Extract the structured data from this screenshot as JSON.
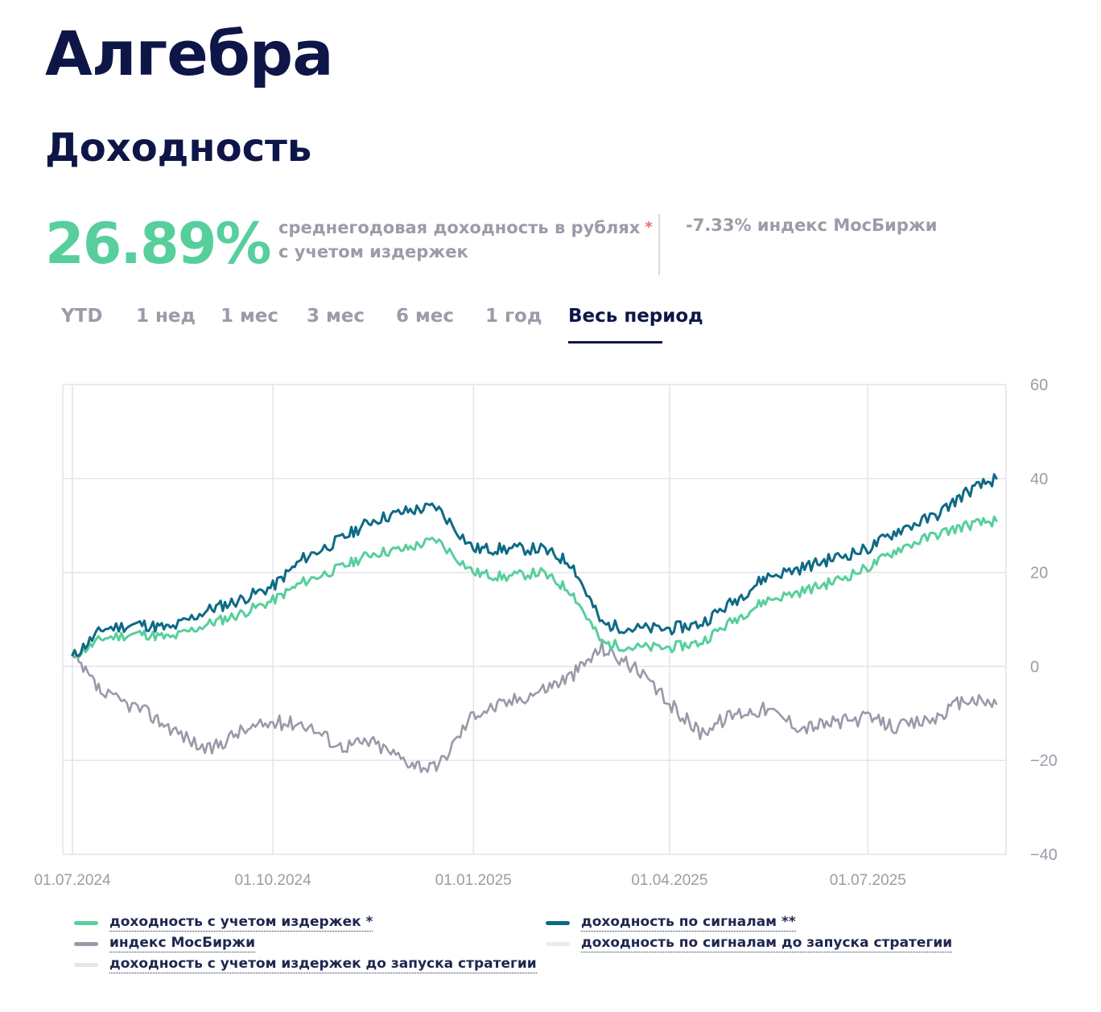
{
  "header": {
    "title": "Алгебра",
    "subtitle": "Доходность"
  },
  "stats": {
    "annual_return": "26.89%",
    "desc_line1": "среднегодовая доходность в рублях",
    "desc_star": "*",
    "desc_line2": "с учетом издержек",
    "index_note": "-7.33% индекс МосБиржи"
  },
  "tabs": [
    {
      "label": "YTD"
    },
    {
      "label": "1 нед"
    },
    {
      "label": "1 мес"
    },
    {
      "label": "3 мес"
    },
    {
      "label": "6 мес"
    },
    {
      "label": "1 год"
    },
    {
      "label": "Весь период",
      "active": true
    }
  ],
  "colors": {
    "net": "#57cf9d",
    "signals": "#0e6a86",
    "index": "#9a99a9",
    "pre_launch": "#e3e6ea",
    "grid": "#e3e4e8",
    "axis_text": "#9a9ca8"
  },
  "legend": {
    "net": "доходность с учетом издержек *",
    "signals": "доходность по сигналам **",
    "index": "индекс МосБиржи",
    "signals_pre": "доходность по сигналам до запуска стратегии",
    "net_pre": "доходность с учетом издержек до запуска стратегии"
  },
  "chart_data": {
    "type": "line",
    "ylim": [
      -40,
      60
    ],
    "yticks": [
      "60",
      "40",
      "20",
      "0",
      "−20",
      "−40"
    ],
    "xticks": [
      "01.07.2024",
      "01.10.2024",
      "01.01.2025",
      "01.04.2025",
      "01.07.2025"
    ],
    "x_range": [
      "01.07.2024",
      "29.08.2025"
    ],
    "grid": true,
    "legend_position": "bottom",
    "x": [
      "01.07.2024",
      "15.07.2024",
      "01.08.2024",
      "15.08.2024",
      "01.09.2024",
      "15.09.2024",
      "01.10.2024",
      "15.10.2024",
      "01.11.2024",
      "15.11.2024",
      "01.12.2024",
      "15.12.2024",
      "01.01.2025",
      "15.01.2025",
      "01.02.2025",
      "15.02.2025",
      "01.03.2025",
      "15.03.2025",
      "01.04.2025",
      "15.04.2025",
      "01.05.2025",
      "15.05.2025",
      "01.06.2025",
      "15.06.2025",
      "01.07.2025",
      "15.07.2025",
      "01.08.2025",
      "15.08.2025",
      "29.08.2025"
    ],
    "series": [
      {
        "name": "доходность с учетом издержек *",
        "key": "net",
        "values": [
          2,
          6,
          7,
          6,
          9,
          11,
          14,
          18,
          21,
          24,
          25,
          27,
          20,
          19,
          20,
          16,
          5,
          4,
          4,
          5,
          10,
          14,
          16,
          18,
          21,
          25,
          28,
          30,
          31
        ]
      },
      {
        "name": "доходность по сигналам **",
        "key": "signals",
        "values": [
          2,
          8,
          9,
          8,
          12,
          14,
          17,
          23,
          27,
          31,
          33,
          34,
          25,
          25,
          25,
          22,
          9,
          8,
          8,
          9,
          14,
          19,
          21,
          23,
          25,
          29,
          32,
          37,
          40
        ]
      },
      {
        "name": "индекс МосБиржи",
        "key": "index",
        "values": [
          2,
          -6,
          -9,
          -13,
          -18,
          -14,
          -12,
          -12,
          -17,
          -16,
          -20,
          -22,
          -10,
          -8,
          -5,
          -2,
          4,
          0,
          -8,
          -14,
          -10,
          -9,
          -13,
          -12,
          -11,
          -13,
          -11,
          -7,
          -8
        ]
      }
    ]
  }
}
